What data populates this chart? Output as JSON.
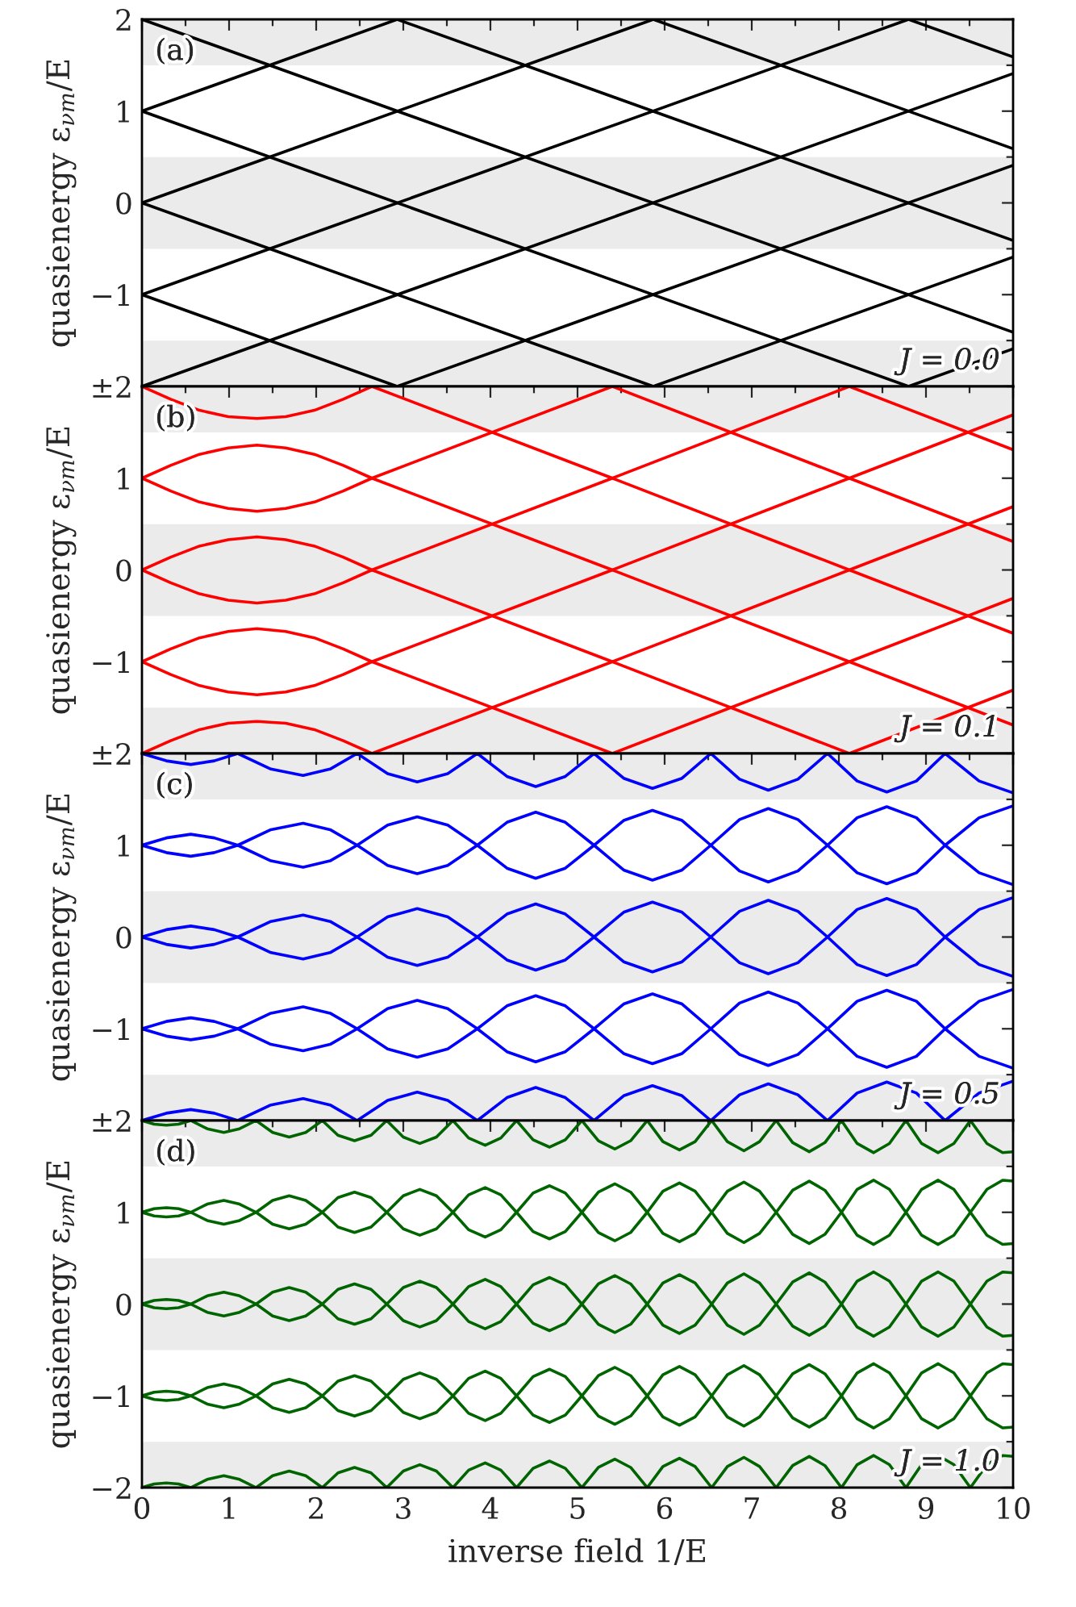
{
  "chart_data": [
    {
      "type": "line",
      "annotations": [
        "(a)",
        "J = 0.0"
      ],
      "ylabel": "quasienergy ε$_{νm}$/E",
      "xlim": [
        0,
        10
      ],
      "ylim": [
        -2,
        2
      ],
      "xticks": [
        0,
        {
          "value": 0.5,
          "label": null
        },
        1,
        {
          "value": 1.5,
          "label": null
        },
        2,
        {
          "value": 2.5,
          "label": null
        },
        3,
        {
          "value": 3.5,
          "label": null
        },
        4,
        {
          "value": 4.5,
          "label": null
        },
        5,
        {
          "value": 5.5,
          "label": null
        },
        6,
        {
          "value": 6.5,
          "label": null
        },
        7,
        {
          "value": 7.5,
          "label": null
        },
        8,
        {
          "value": 8.5,
          "label": null
        },
        9,
        {
          "value": 9.5,
          "label": null
        },
        10
      ],
      "yticks": [
        2,
        {
          "value": 1.5,
          "label": null
        },
        1,
        {
          "value": 0.5,
          "label": null
        },
        0,
        {
          "value": -0.5,
          "label": null
        },
        {
          "value": -1,
          "label": "−1"
        },
        {
          "value": -1.5,
          "label": null
        },
        {
          "value": -2,
          "label": "±2"
        }
      ],
      "tick_labels": "y",
      "grid": false,
      "legend": false,
      "bands": [
        {
          "axis": "y",
          "from": 1.5,
          "to": 2,
          "color": "#ebebeb"
        },
        {
          "axis": "y",
          "from": -0.5,
          "to": 0.5,
          "color": "#ebebeb"
        },
        {
          "axis": "y",
          "from": -2,
          "to": -1.5,
          "color": "#ebebeb"
        }
      ],
      "series": [
        {
          "color": "#000000",
          "x": [
            0,
            10
          ],
          "values": [
            -2,
            1.41
          ]
        },
        {
          "color": "#000000",
          "x": [
            0,
            8.8
          ],
          "values": [
            -1,
            2
          ]
        },
        {
          "color": "#000000",
          "x": [
            0,
            5.87
          ],
          "values": [
            0,
            2
          ]
        },
        {
          "color": "#000000",
          "x": [
            0,
            2.93
          ],
          "values": [
            1,
            2
          ]
        },
        {
          "color": "#000000",
          "x": [
            2.93,
            10
          ],
          "values": [
            -2,
            0.41
          ]
        },
        {
          "color": "#000000",
          "x": [
            5.87,
            10
          ],
          "values": [
            -2,
            -0.59
          ]
        },
        {
          "color": "#000000",
          "x": [
            8.8,
            10
          ],
          "values": [
            -2,
            -1.59
          ]
        },
        {
          "color": "#000000",
          "x": [
            0,
            10
          ],
          "values": [
            2,
            -1.41
          ]
        },
        {
          "color": "#000000",
          "x": [
            0,
            8.8
          ],
          "values": [
            1,
            -2
          ]
        },
        {
          "color": "#000000",
          "x": [
            0,
            5.87
          ],
          "values": [
            0,
            -2
          ]
        },
        {
          "color": "#000000",
          "x": [
            0,
            2.93
          ],
          "values": [
            -1,
            -2
          ]
        },
        {
          "color": "#000000",
          "x": [
            2.93,
            10
          ],
          "values": [
            2,
            -0.41
          ]
        },
        {
          "color": "#000000",
          "x": [
            5.87,
            10
          ],
          "values": [
            2,
            0.59
          ]
        },
        {
          "color": "#000000",
          "x": [
            8.8,
            10
          ],
          "values": [
            2,
            1.59
          ]
        }
      ]
    },
    {
      "type": "line",
      "annotations": [
        "(b)",
        "J = 0.1"
      ],
      "ylabel": "quasienergy ε$_{νm}$/E",
      "xlim": [
        0,
        10
      ],
      "ylim": [
        -2,
        2
      ],
      "xticks": [
        0,
        {
          "value": 0.5,
          "label": null
        },
        1,
        {
          "value": 1.5,
          "label": null
        },
        2,
        {
          "value": 2.5,
          "label": null
        },
        3,
        {
          "value": 3.5,
          "label": null
        },
        4,
        {
          "value": 4.5,
          "label": null
        },
        5,
        {
          "value": 5.5,
          "label": null
        },
        6,
        {
          "value": 6.5,
          "label": null
        },
        7,
        {
          "value": 7.5,
          "label": null
        },
        8,
        {
          "value": 8.5,
          "label": null
        },
        9,
        {
          "value": 9.5,
          "label": null
        },
        10
      ],
      "yticks": [
        {
          "value": 2,
          "label": null
        },
        {
          "value": 1.5,
          "label": null
        },
        1,
        {
          "value": 0.5,
          "label": null
        },
        0,
        {
          "value": -0.5,
          "label": null
        },
        {
          "value": -1,
          "label": "−1"
        },
        {
          "value": -1.5,
          "label": null
        },
        {
          "value": -2,
          "label": "±2"
        }
      ],
      "tick_labels": "y",
      "grid": false,
      "legend": false,
      "bands": [
        {
          "axis": "y",
          "from": 1.5,
          "to": 2,
          "color": "#ebebeb"
        },
        {
          "axis": "y",
          "from": -0.5,
          "to": 0.5,
          "color": "#ebebeb"
        },
        {
          "axis": "y",
          "from": -2,
          "to": -1.5,
          "color": "#ebebeb"
        }
      ],
      "series": [
        {
          "color": "#ff0000",
          "x": [
            0,
            0.33,
            0.66,
            0.99,
            1.32,
            1.65,
            1.98,
            2.31,
            2.64,
            5.4,
            8.12,
            10
          ],
          "values": [
            1,
            1.14,
            1.26,
            1.33,
            1.36,
            1.33,
            1.26,
            1.14,
            1,
            0,
            -1,
            -1.69
          ]
        },
        {
          "color": "#ff0000",
          "x": [
            0,
            0.33,
            0.66,
            0.99,
            1.32,
            1.65,
            1.98,
            2.31,
            2.64,
            5.4
          ],
          "values": [
            1,
            0.86,
            0.74,
            0.67,
            0.64,
            0.67,
            0.74,
            0.86,
            1,
            2
          ]
        },
        {
          "color": "#ff0000",
          "x": [
            0,
            0.33,
            0.66,
            0.99,
            1.32,
            1.65,
            1.98,
            2.31,
            2.64,
            5.4,
            8.12
          ],
          "values": [
            0,
            0.14,
            0.26,
            0.33,
            0.36,
            0.33,
            0.26,
            0.14,
            0,
            1,
            2
          ]
        },
        {
          "color": "#ff0000",
          "x": [
            0,
            0.33,
            0.66,
            0.99,
            1.32,
            1.65,
            1.98,
            2.31,
            2.64,
            5.4,
            8.12
          ],
          "values": [
            0,
            -0.14,
            -0.26,
            -0.33,
            -0.36,
            -0.33,
            -0.26,
            -0.14,
            0,
            -1,
            -2
          ]
        },
        {
          "color": "#ff0000",
          "x": [
            0,
            0.33,
            0.66,
            0.99,
            1.32,
            1.65,
            1.98,
            2.31,
            2.64,
            5.4,
            8.12,
            10
          ],
          "values": [
            -1,
            -0.86,
            -0.74,
            -0.67,
            -0.64,
            -0.67,
            -0.74,
            -0.86,
            -1,
            0,
            1,
            1.69
          ]
        },
        {
          "color": "#ff0000",
          "x": [
            0,
            0.33,
            0.66,
            0.99,
            1.32,
            1.65,
            1.98,
            2.31,
            2.64,
            5.4
          ],
          "values": [
            -1,
            -1.14,
            -1.26,
            -1.33,
            -1.36,
            -1.33,
            -1.26,
            -1.14,
            -1,
            -2
          ]
        },
        {
          "color": "#ff0000",
          "x": [
            0,
            0.33,
            0.66,
            0.99,
            1.32,
            1.65,
            1.98,
            2.31,
            2.64
          ],
          "values": [
            2,
            1.86,
            1.74,
            1.67,
            1.65,
            1.67,
            1.74,
            1.86,
            2
          ]
        },
        {
          "color": "#ff0000",
          "x": [
            0,
            0.33,
            0.66,
            0.99,
            1.32,
            1.65,
            1.98,
            2.31,
            2.64
          ],
          "values": [
            -2,
            -1.86,
            -1.74,
            -1.67,
            -1.65,
            -1.67,
            -1.74,
            -1.86,
            -2
          ]
        },
        {
          "color": "#ff0000",
          "x": [
            2.64,
            5.4,
            8.12,
            10
          ],
          "values": [
            2,
            1,
            0,
            -0.69
          ]
        },
        {
          "color": "#ff0000",
          "x": [
            2.64,
            5.4,
            8.12,
            10
          ],
          "values": [
            -2,
            -1,
            0,
            0.69
          ]
        },
        {
          "color": "#ff0000",
          "x": [
            5.4,
            8.12,
            10
          ],
          "values": [
            2,
            1,
            0.31
          ]
        },
        {
          "color": "#ff0000",
          "x": [
            5.4,
            8.12,
            10
          ],
          "values": [
            -2,
            -1,
            -0.31
          ]
        },
        {
          "color": "#ff0000",
          "x": [
            8.12,
            10
          ],
          "values": [
            2,
            1.31
          ]
        },
        {
          "color": "#ff0000",
          "x": [
            8.12,
            10
          ],
          "values": [
            -2,
            -1.31
          ]
        }
      ]
    },
    {
      "type": "line",
      "annotations": [
        "(c)",
        "J = 0.5"
      ],
      "ylabel": "quasienergy ε$_{νm}$/E",
      "xlim": [
        0,
        10
      ],
      "ylim": [
        -2,
        2
      ],
      "xticks": [
        0,
        {
          "value": 0.5,
          "label": null
        },
        1,
        {
          "value": 1.5,
          "label": null
        },
        2,
        {
          "value": 2.5,
          "label": null
        },
        3,
        {
          "value": 3.5,
          "label": null
        },
        4,
        {
          "value": 4.5,
          "label": null
        },
        5,
        {
          "value": 5.5,
          "label": null
        },
        6,
        {
          "value": 6.5,
          "label": null
        },
        7,
        {
          "value": 7.5,
          "label": null
        },
        8,
        {
          "value": 8.5,
          "label": null
        },
        9,
        {
          "value": 9.5,
          "label": null
        },
        10
      ],
      "yticks": [
        {
          "value": 2,
          "label": null
        },
        {
          "value": 1.5,
          "label": null
        },
        1,
        {
          "value": 0.5,
          "label": null
        },
        0,
        {
          "value": -0.5,
          "label": null
        },
        {
          "value": -1,
          "label": "−1"
        },
        {
          "value": -1.5,
          "label": null
        },
        {
          "value": -2,
          "label": "±2"
        }
      ],
      "tick_labels": "y",
      "grid": false,
      "legend": false,
      "bands": [
        {
          "axis": "y",
          "from": 1.5,
          "to": 2,
          "color": "#ebebeb"
        },
        {
          "axis": "y",
          "from": -0.5,
          "to": 0.5,
          "color": "#ebebeb"
        },
        {
          "axis": "y",
          "from": -2,
          "to": -1.5,
          "color": "#ebebeb"
        }
      ],
      "x": [
        0,
        0.28,
        0.56,
        0.83,
        1.1,
        1.48,
        1.85,
        2.16,
        2.47,
        2.82,
        3.16,
        3.51,
        3.85,
        4.19,
        4.52,
        4.86,
        5.19,
        5.53,
        5.86,
        6.2,
        6.53,
        6.86,
        7.19,
        7.53,
        7.87,
        8.21,
        8.55,
        8.89,
        9.22,
        9.61,
        10
      ],
      "series": [
        {
          "color": "#0000ff",
          "values": [
            1,
            1.08,
            1.12,
            1.08,
            1,
            0.83,
            0.76,
            0.83,
            1,
            1.22,
            1.31,
            1.22,
            1,
            0.75,
            0.64,
            0.75,
            1,
            1.27,
            1.38,
            1.27,
            1,
            0.72,
            0.6,
            0.72,
            1,
            1.3,
            1.42,
            1.3,
            1,
            0.7,
            0.57
          ]
        },
        {
          "color": "#0000ff",
          "values": [
            1,
            0.92,
            0.88,
            0.92,
            1,
            1.17,
            1.24,
            1.17,
            1,
            0.78,
            0.69,
            0.78,
            1,
            1.25,
            1.36,
            1.25,
            1,
            0.73,
            0.62,
            0.73,
            1,
            1.28,
            1.4,
            1.28,
            1,
            0.7,
            0.58,
            0.7,
            1,
            1.3,
            1.43
          ]
        },
        {
          "color": "#0000ff",
          "values": [
            0,
            0.08,
            0.12,
            0.08,
            0,
            -0.17,
            -0.24,
            -0.17,
            0,
            0.22,
            0.31,
            0.22,
            0,
            -0.25,
            -0.36,
            -0.25,
            0,
            0.27,
            0.38,
            0.27,
            0,
            -0.28,
            -0.4,
            -0.28,
            0,
            0.3,
            0.42,
            0.3,
            0,
            -0.3,
            -0.43
          ]
        },
        {
          "color": "#0000ff",
          "values": [
            0,
            -0.08,
            -0.12,
            -0.08,
            0,
            0.17,
            0.24,
            0.17,
            0,
            -0.22,
            -0.31,
            -0.22,
            0,
            0.25,
            0.36,
            0.25,
            0,
            -0.27,
            -0.38,
            -0.27,
            0,
            0.28,
            0.4,
            0.28,
            0,
            -0.3,
            -0.42,
            -0.3,
            0,
            0.3,
            0.43
          ]
        },
        {
          "color": "#0000ff",
          "values": [
            -1,
            -0.92,
            -0.88,
            -0.92,
            -1,
            -1.17,
            -1.24,
            -1.17,
            -1,
            -0.78,
            -0.69,
            -0.78,
            -1,
            -1.25,
            -1.36,
            -1.25,
            -1,
            -0.73,
            -0.62,
            -0.73,
            -1,
            -1.28,
            -1.4,
            -1.28,
            -1,
            -0.7,
            -0.58,
            -0.7,
            -1,
            -1.3,
            -1.43
          ]
        },
        {
          "color": "#0000ff",
          "values": [
            -1,
            -1.08,
            -1.12,
            -1.08,
            -1,
            -0.83,
            -0.76,
            -0.83,
            -1,
            -1.22,
            -1.31,
            -1.22,
            -1,
            -0.75,
            -0.64,
            -0.75,
            -1,
            -1.27,
            -1.38,
            -1.27,
            -1,
            -0.72,
            -0.6,
            -0.72,
            -1,
            -1.3,
            -1.42,
            -1.3,
            -1,
            -0.7,
            -0.57
          ]
        },
        {
          "color": "#0000ff",
          "values": [
            2,
            1.92,
            1.88,
            1.92,
            2,
            1.83,
            1.76,
            1.83,
            2,
            1.78,
            1.69,
            1.78,
            2,
            1.75,
            1.64,
            1.75,
            2,
            1.73,
            1.62,
            1.73,
            2,
            1.72,
            1.6,
            1.72,
            2,
            1.7,
            1.58,
            1.7,
            2,
            1.7,
            1.57
          ]
        },
        {
          "color": "#0000ff",
          "values": [
            -2,
            -1.92,
            -1.88,
            -1.92,
            -2,
            -1.83,
            -1.76,
            -1.83,
            -2,
            -1.78,
            -1.69,
            -1.78,
            -2,
            -1.75,
            -1.64,
            -1.75,
            -2,
            -1.73,
            -1.62,
            -1.73,
            -2,
            -1.72,
            -1.6,
            -1.72,
            -2,
            -1.7,
            -1.58,
            -1.7,
            -2,
            -1.7,
            -1.57
          ]
        }
      ]
    },
    {
      "type": "line",
      "annotations": [
        "(d)",
        "J = 1.0"
      ],
      "ylabel": "quasienergy ε$_{νm}$/E",
      "xlabel": "inverse field 1/E",
      "xlim": [
        0,
        10
      ],
      "ylim": [
        -2,
        2
      ],
      "xticks": [
        0,
        {
          "value": 0.5,
          "label": null
        },
        1,
        {
          "value": 1.5,
          "label": null
        },
        2,
        {
          "value": 2.5,
          "label": null
        },
        3,
        {
          "value": 3.5,
          "label": null
        },
        4,
        {
          "value": 4.5,
          "label": null
        },
        5,
        {
          "value": 5.5,
          "label": null
        },
        6,
        {
          "value": 6.5,
          "label": null
        },
        7,
        {
          "value": 7.5,
          "label": null
        },
        8,
        {
          "value": 8.5,
          "label": null
        },
        9,
        {
          "value": 9.5,
          "label": null
        },
        10
      ],
      "yticks": [
        {
          "value": 2,
          "label": null
        },
        {
          "value": 1.5,
          "label": null
        },
        1,
        {
          "value": 0.5,
          "label": null
        },
        0,
        {
          "value": -0.5,
          "label": null
        },
        {
          "value": -1,
          "label": "−1"
        },
        {
          "value": -1.5,
          "label": null
        },
        {
          "value": -2,
          "label": "−2"
        }
      ],
      "grid": false,
      "legend": false,
      "bands": [
        {
          "axis": "y",
          "from": 1.5,
          "to": 2,
          "color": "#ebebeb"
        },
        {
          "axis": "y",
          "from": -0.5,
          "to": 0.5,
          "color": "#ebebeb"
        },
        {
          "axis": "y",
          "from": -2,
          "to": -1.5,
          "color": "#ebebeb"
        }
      ],
      "x": [
        0,
        0.14,
        0.28,
        0.42,
        0.56,
        0.75,
        0.94,
        1.12,
        1.31,
        1.5,
        1.69,
        1.88,
        2.07,
        2.25,
        2.44,
        2.63,
        2.81,
        3.0,
        3.19,
        3.38,
        3.57,
        3.75,
        3.94,
        4.12,
        4.3,
        4.49,
        4.68,
        4.86,
        5.05,
        5.24,
        5.43,
        5.61,
        5.8,
        5.98,
        6.17,
        6.35,
        6.54,
        6.72,
        6.91,
        7.09,
        7.28,
        7.47,
        7.66,
        7.84,
        8.03,
        8.21,
        8.4,
        8.58,
        8.77,
        8.95,
        9.14,
        9.32,
        9.51,
        9.7,
        9.88,
        10
      ],
      "series": [
        {
          "color": "#006400",
          "values": [
            1,
            1.04,
            1.05,
            1.04,
            1,
            0.91,
            0.87,
            0.91,
            1,
            1.13,
            1.18,
            1.13,
            1,
            0.84,
            0.78,
            0.84,
            1,
            1.18,
            1.25,
            1.18,
            1,
            0.81,
            0.73,
            0.81,
            1,
            1.21,
            1.29,
            1.21,
            1,
            0.78,
            0.69,
            0.78,
            1,
            1.23,
            1.32,
            1.23,
            1,
            0.77,
            0.67,
            0.77,
            1,
            1.24,
            1.34,
            1.24,
            1,
            0.75,
            0.65,
            0.75,
            1,
            1.25,
            1.35,
            1.25,
            1,
            0.75,
            0.65,
            0.66
          ]
        },
        {
          "color": "#006400",
          "values": [
            1,
            0.96,
            0.95,
            0.96,
            1,
            1.09,
            1.13,
            1.09,
            1,
            0.87,
            0.82,
            0.87,
            1,
            1.16,
            1.22,
            1.16,
            1,
            0.82,
            0.75,
            0.82,
            1,
            1.19,
            1.27,
            1.19,
            1,
            0.79,
            0.71,
            0.79,
            1,
            1.22,
            1.31,
            1.22,
            1,
            0.77,
            0.68,
            0.77,
            1,
            1.23,
            1.33,
            1.23,
            1,
            0.76,
            0.66,
            0.76,
            1,
            1.25,
            1.35,
            1.25,
            1,
            0.75,
            0.65,
            0.75,
            1,
            1.25,
            1.35,
            1.34
          ]
        },
        {
          "color": "#006400",
          "values": [
            0,
            0.04,
            0.05,
            0.04,
            0,
            -0.09,
            -0.13,
            -0.09,
            0,
            0.13,
            0.18,
            0.13,
            0,
            -0.16,
            -0.22,
            -0.16,
            0,
            0.18,
            0.25,
            0.18,
            0,
            -0.19,
            -0.27,
            -0.19,
            0,
            0.21,
            0.29,
            0.21,
            0,
            -0.22,
            -0.31,
            -0.22,
            0,
            0.23,
            0.32,
            0.23,
            0,
            -0.23,
            -0.33,
            -0.23,
            0,
            0.24,
            0.34,
            0.24,
            0,
            -0.25,
            -0.35,
            -0.25,
            0,
            0.25,
            0.35,
            0.25,
            0,
            -0.25,
            -0.35,
            -0.34
          ]
        },
        {
          "color": "#006400",
          "values": [
            0,
            -0.04,
            -0.05,
            -0.04,
            0,
            0.09,
            0.13,
            0.09,
            0,
            -0.13,
            -0.18,
            -0.13,
            0,
            0.16,
            0.22,
            0.16,
            0,
            -0.18,
            -0.25,
            -0.18,
            0,
            0.19,
            0.27,
            0.19,
            0,
            -0.21,
            -0.29,
            -0.21,
            0,
            0.22,
            0.31,
            0.22,
            0,
            -0.23,
            -0.32,
            -0.23,
            0,
            0.23,
            0.33,
            0.23,
            0,
            -0.24,
            -0.34,
            -0.24,
            0,
            0.25,
            0.35,
            0.25,
            0,
            -0.25,
            -0.35,
            -0.25,
            0,
            0.25,
            0.35,
            0.34
          ]
        },
        {
          "color": "#006400",
          "values": [
            -1,
            -0.96,
            -0.95,
            -0.96,
            -1,
            -1.09,
            -1.13,
            -1.09,
            -1,
            -0.87,
            -0.82,
            -0.87,
            -1,
            -1.16,
            -1.22,
            -1.16,
            -1,
            -0.82,
            -0.75,
            -0.82,
            -1,
            -1.19,
            -1.27,
            -1.19,
            -1,
            -0.79,
            -0.71,
            -0.79,
            -1,
            -1.22,
            -1.31,
            -1.22,
            -1,
            -0.77,
            -0.68,
            -0.77,
            -1,
            -1.23,
            -1.33,
            -1.23,
            -1,
            -0.76,
            -0.66,
            -0.76,
            -1,
            -1.25,
            -1.35,
            -1.25,
            -1,
            -0.75,
            -0.65,
            -0.75,
            -1,
            -1.25,
            -1.35,
            -1.34
          ]
        },
        {
          "color": "#006400",
          "values": [
            -1,
            -1.04,
            -1.05,
            -1.04,
            -1,
            -0.91,
            -0.87,
            -0.91,
            -1,
            -1.13,
            -1.18,
            -1.13,
            -1,
            -0.84,
            -0.78,
            -0.84,
            -1,
            -1.18,
            -1.25,
            -1.18,
            -1,
            -0.81,
            -0.73,
            -0.81,
            -1,
            -1.21,
            -1.29,
            -1.21,
            -1,
            -0.78,
            -0.69,
            -0.78,
            -1,
            -1.23,
            -1.32,
            -1.23,
            -1,
            -0.77,
            -0.67,
            -0.77,
            -1,
            -1.24,
            -1.34,
            -1.24,
            -1,
            -0.75,
            -0.65,
            -0.75,
            -1,
            -1.25,
            -1.35,
            -1.25,
            -1,
            -0.75,
            -0.65,
            -0.66
          ]
        },
        {
          "color": "#006400",
          "values": [
            2,
            1.96,
            1.95,
            1.96,
            2,
            1.91,
            1.87,
            1.91,
            2,
            1.87,
            1.82,
            1.87,
            2,
            1.84,
            1.78,
            1.84,
            2,
            1.82,
            1.75,
            1.82,
            2,
            1.81,
            1.73,
            1.81,
            2,
            1.79,
            1.71,
            1.79,
            2,
            1.78,
            1.69,
            1.78,
            2,
            1.77,
            1.68,
            1.77,
            2,
            1.77,
            1.67,
            1.77,
            2,
            1.76,
            1.66,
            1.76,
            2,
            1.75,
            1.65,
            1.75,
            2,
            1.75,
            1.65,
            1.75,
            2,
            1.75,
            1.65,
            1.66
          ]
        },
        {
          "color": "#006400",
          "values": [
            -2,
            -1.96,
            -1.95,
            -1.96,
            -2,
            -1.91,
            -1.87,
            -1.91,
            -2,
            -1.87,
            -1.82,
            -1.87,
            -2,
            -1.84,
            -1.78,
            -1.84,
            -2,
            -1.82,
            -1.75,
            -1.82,
            -2,
            -1.81,
            -1.73,
            -1.81,
            -2,
            -1.79,
            -1.71,
            -1.79,
            -2,
            -1.78,
            -1.69,
            -1.78,
            -2,
            -1.77,
            -1.68,
            -1.77,
            -2,
            -1.77,
            -1.67,
            -1.77,
            -2,
            -1.76,
            -1.66,
            -1.76,
            -2,
            -1.75,
            -1.65,
            -1.75,
            -2,
            -1.75,
            -1.65,
            -1.75,
            -2,
            -1.75,
            -1.65,
            -1.66
          ]
        }
      ]
    }
  ]
}
